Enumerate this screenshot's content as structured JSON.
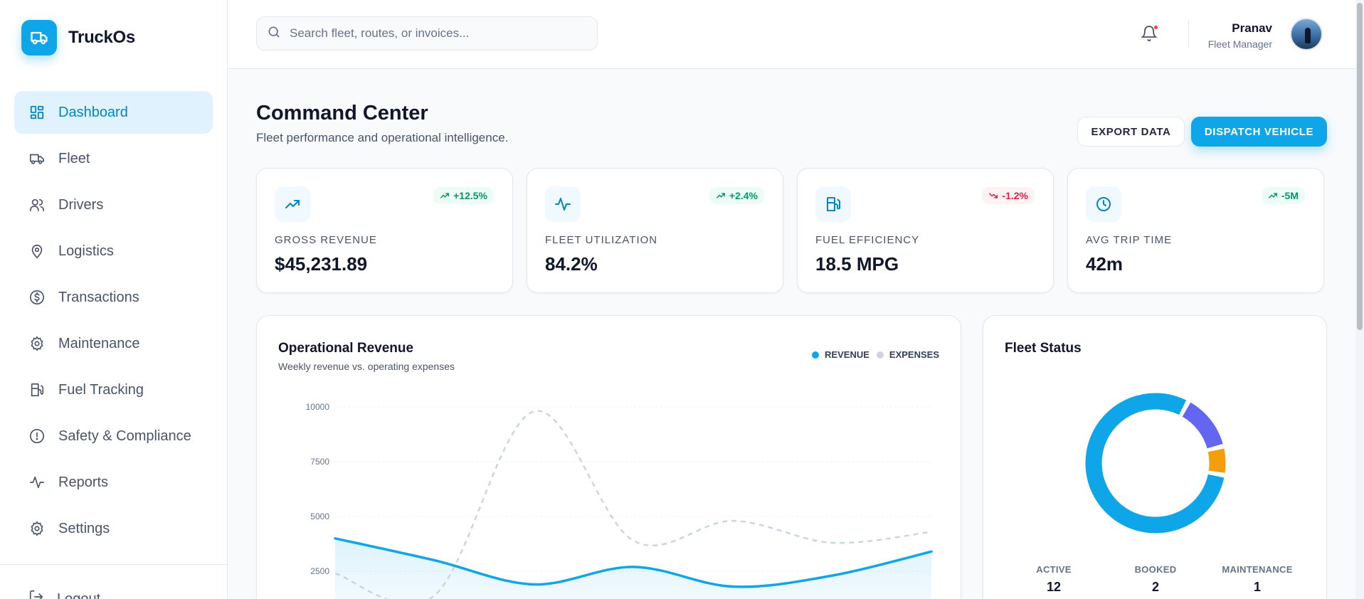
{
  "app": {
    "name": "TruckOs"
  },
  "sidebar": {
    "items": [
      {
        "label": "Dashboard",
        "icon": "dashboard-icon",
        "active": true
      },
      {
        "label": "Fleet",
        "icon": "truck-icon"
      },
      {
        "label": "Drivers",
        "icon": "users-icon"
      },
      {
        "label": "Logistics",
        "icon": "map-pin-icon"
      },
      {
        "label": "Transactions",
        "icon": "dollar-circle-icon"
      },
      {
        "label": "Maintenance",
        "icon": "gear-icon"
      },
      {
        "label": "Fuel Tracking",
        "icon": "fuel-icon"
      },
      {
        "label": "Safety & Compliance",
        "icon": "alert-circle-icon"
      },
      {
        "label": "Reports",
        "icon": "activity-icon"
      },
      {
        "label": "Settings",
        "icon": "gear-icon"
      }
    ],
    "logout_label": "Logout"
  },
  "header": {
    "search_placeholder": "Search fleet, routes, or invoices...",
    "user_name": "Pranav",
    "user_role": "Fleet Manager"
  },
  "page": {
    "title": "Command Center",
    "subtitle": "Fleet performance and operational intelligence.",
    "export_label": "EXPORT DATA",
    "dispatch_label": "DISPATCH VEHICLE"
  },
  "kpis": [
    {
      "label": "GROSS REVENUE",
      "value": "$45,231.89",
      "change": "+12.5%",
      "trend": "up",
      "icon": "trending-up-icon"
    },
    {
      "label": "FLEET UTILIZATION",
      "value": "84.2%",
      "change": "+2.4%",
      "trend": "up",
      "icon": "activity-icon"
    },
    {
      "label": "FUEL EFFICIENCY",
      "value": "18.5 MPG",
      "change": "-1.2%",
      "trend": "down",
      "icon": "fuel-icon"
    },
    {
      "label": "AVG TRIP TIME",
      "value": "42m",
      "change": "-5M",
      "trend": "up",
      "icon": "clock-icon"
    }
  ],
  "revenue_panel": {
    "title": "Operational Revenue",
    "subtitle": "Weekly revenue vs. operating expenses",
    "legend_revenue": "REVENUE",
    "legend_expenses": "EXPENSES"
  },
  "fleet_panel": {
    "title": "Fleet Status",
    "active_label": "ACTIVE",
    "active_value": "12",
    "booked_label": "BOOKED",
    "booked_value": "2",
    "maintenance_label": "MAINTENANCE",
    "maintenance_value": "1"
  },
  "colors": {
    "accent": "#0ea5e9",
    "revenue": "#0ea5e9",
    "expenses": "#cbd5e1",
    "booked": "#6366f1",
    "maintenance": "#f59e0b",
    "positive": "#059669",
    "negative": "#e11d48"
  },
  "chart_data": [
    {
      "type": "line",
      "title": "Operational Revenue",
      "ylim": [
        0,
        10000
      ],
      "y_ticks": [
        2500,
        5000,
        7500,
        10000
      ],
      "grid": true,
      "legend": "top-right",
      "series": [
        {
          "name": "REVENUE",
          "values": [
            4000,
            3000,
            1900,
            2700,
            1800,
            2300,
            3400
          ]
        },
        {
          "name": "EXPENSES",
          "values": [
            2400,
            1400,
            9800,
            3900,
            4800,
            3800,
            4300
          ]
        }
      ]
    },
    {
      "type": "pie",
      "title": "Fleet Status",
      "categories": [
        "ACTIVE",
        "BOOKED",
        "MAINTENANCE"
      ],
      "values": [
        12,
        2,
        1
      ]
    }
  ]
}
